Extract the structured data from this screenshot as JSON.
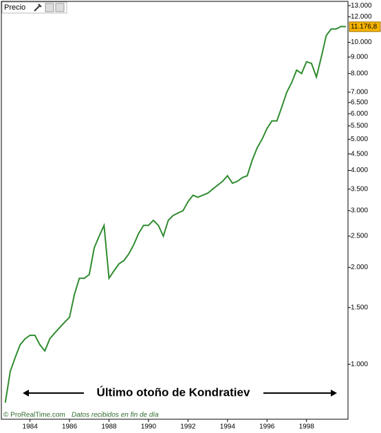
{
  "chart_data": {
    "type": "line",
    "title": "Precio",
    "annotation": "Último otoño de Kondratiev",
    "source": "© ProRealTime.com",
    "note": "Datos recibidos en fin de día",
    "log_scale": true,
    "x": [
      1982.75,
      1983.0,
      1983.25,
      1983.5,
      1983.75,
      1984.0,
      1984.25,
      1984.5,
      1984.75,
      1985.0,
      1985.25,
      1985.5,
      1985.75,
      1986.0,
      1986.25,
      1986.5,
      1986.75,
      1987.0,
      1987.25,
      1987.5,
      1987.75,
      1988.0,
      1988.25,
      1988.5,
      1988.75,
      1989.0,
      1989.25,
      1989.5,
      1989.75,
      1990.0,
      1990.25,
      1990.5,
      1990.75,
      1991.0,
      1991.25,
      1991.5,
      1991.75,
      1992.0,
      1992.25,
      1992.5,
      1992.75,
      1993.0,
      1993.25,
      1993.5,
      1993.75,
      1994.0,
      1994.25,
      1994.5,
      1994.75,
      1995.0,
      1995.25,
      1995.5,
      1995.75,
      1996.0,
      1996.25,
      1996.5,
      1996.75,
      1997.0,
      1997.25,
      1997.5,
      1997.75,
      1998.0,
      1998.25,
      1998.5,
      1998.75,
      1999.0,
      1999.25,
      1999.5,
      1999.75,
      2000.0
    ],
    "series": [
      {
        "name": "Precio",
        "color": "#2e8b2e",
        "values": [
          760,
          950,
          1050,
          1150,
          1200,
          1230,
          1230,
          1150,
          1100,
          1200,
          1250,
          1300,
          1350,
          1400,
          1650,
          1850,
          1850,
          1900,
          2300,
          2500,
          2700,
          1850,
          1950,
          2050,
          2100,
          2200,
          2350,
          2550,
          2700,
          2700,
          2800,
          2700,
          2500,
          2800,
          2900,
          2950,
          3000,
          3200,
          3350,
          3300,
          3350,
          3400,
          3500,
          3600,
          3700,
          3850,
          3650,
          3700,
          3800,
          3850,
          4300,
          4700,
          5000,
          5400,
          5700,
          5700,
          6300,
          7000,
          7500,
          8200,
          8000,
          8700,
          8600,
          7800,
          9000,
          10500,
          11000,
          11000,
          11200,
          11176.8
        ],
        "value_labels": [
          null,
          null,
          null,
          null,
          null,
          null,
          null,
          null,
          null,
          null,
          null,
          null,
          null,
          null,
          null,
          null,
          null,
          null,
          null,
          null,
          null,
          null,
          null,
          null,
          null,
          null,
          null,
          null,
          null,
          null,
          null,
          null,
          null,
          null,
          null,
          null,
          null,
          null,
          null,
          null,
          null,
          null,
          null,
          null,
          null,
          null,
          null,
          null,
          null,
          null,
          null,
          null,
          null,
          null,
          null,
          null,
          null,
          null,
          null,
          null,
          null,
          null,
          null,
          null,
          null,
          null,
          null,
          null,
          null,
          "11.176,8"
        ],
        "label_color": "#f6b400"
      }
    ],
    "xlim": [
      1982.55,
      2000.1
    ],
    "xticks": [
      1984,
      1986,
      1988,
      1990,
      1992,
      1994,
      1996,
      1998
    ],
    "ylim": [
      675,
      13400
    ],
    "yticks": [
      {
        "value": 1000,
        "label": "1.000"
      },
      {
        "value": 1500,
        "label": "1.500"
      },
      {
        "value": 2000,
        "label": "2.000"
      },
      {
        "value": 2500,
        "label": "2.500"
      },
      {
        "value": 3000,
        "label": "3.000"
      },
      {
        "value": 3500,
        "label": "3.500"
      },
      {
        "value": 4000,
        "label": "4.000"
      },
      {
        "value": 4500,
        "label": "4.500"
      },
      {
        "value": 5000,
        "label": "5.000"
      },
      {
        "value": 5500,
        "label": "5.500"
      },
      {
        "value": 6000,
        "label": "6.000"
      },
      {
        "value": 6500,
        "label": "6.500"
      },
      {
        "value": 7000,
        "label": "7.000"
      },
      {
        "value": 8000,
        "label": "8.000"
      },
      {
        "value": 9000,
        "label": "9.000"
      },
      {
        "value": 10000,
        "label": "10.000"
      },
      {
        "value": 12000,
        "label": "12.000"
      },
      {
        "value": 13000,
        "label": "13.000"
      }
    ]
  }
}
